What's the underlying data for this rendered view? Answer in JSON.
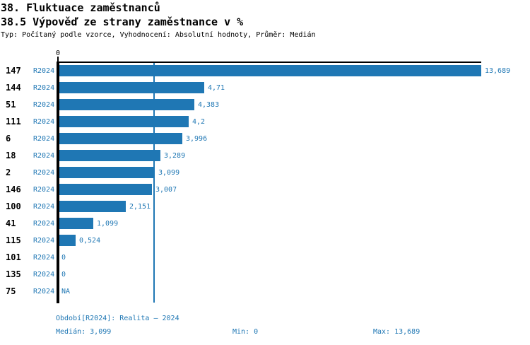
{
  "header": {
    "title": "38. Fluktuace zaměstnanců",
    "subtitle": "38.5 Výpověď ze strany zaměstnance v %",
    "meta": "Typ: Počítaný podle vzorce, Vyhodnocení: Absolutní hodnoty, Průměr: Medián"
  },
  "colors": {
    "bar": "#1f77b4",
    "accent_text": "#1f77b4",
    "axis": "#000000"
  },
  "chart_data": {
    "type": "bar",
    "orientation": "horizontal",
    "title": "38.5 Výpověď ze strany zaměstnance v %",
    "series_label": "R2024",
    "categories": [
      "147",
      "144",
      "51",
      "111",
      "6",
      "18",
      "2",
      "146",
      "100",
      "41",
      "115",
      "101",
      "135",
      "75"
    ],
    "values": [
      13.689,
      4.71,
      4.383,
      4.2,
      3.996,
      3.289,
      3.099,
      3.007,
      2.151,
      1.099,
      0.524,
      0,
      0,
      null
    ],
    "value_labels": [
      "13,689",
      "4,71",
      "4,383",
      "4,2",
      "3,996",
      "3,289",
      "3,099",
      "3,007",
      "2,151",
      "1,099",
      "0,524",
      "0",
      "0",
      "NA"
    ],
    "xlim": [
      0,
      13.689
    ],
    "x_tick_labels": [
      "0"
    ],
    "median_value": 3.099,
    "grid": "off",
    "reference_line": "median",
    "legend_position": "none"
  },
  "footer": {
    "period": "Období[R2024]: Realita – 2024",
    "median": "Medián: 3,099",
    "min": "Min: 0",
    "max": "Max: 13,689"
  }
}
